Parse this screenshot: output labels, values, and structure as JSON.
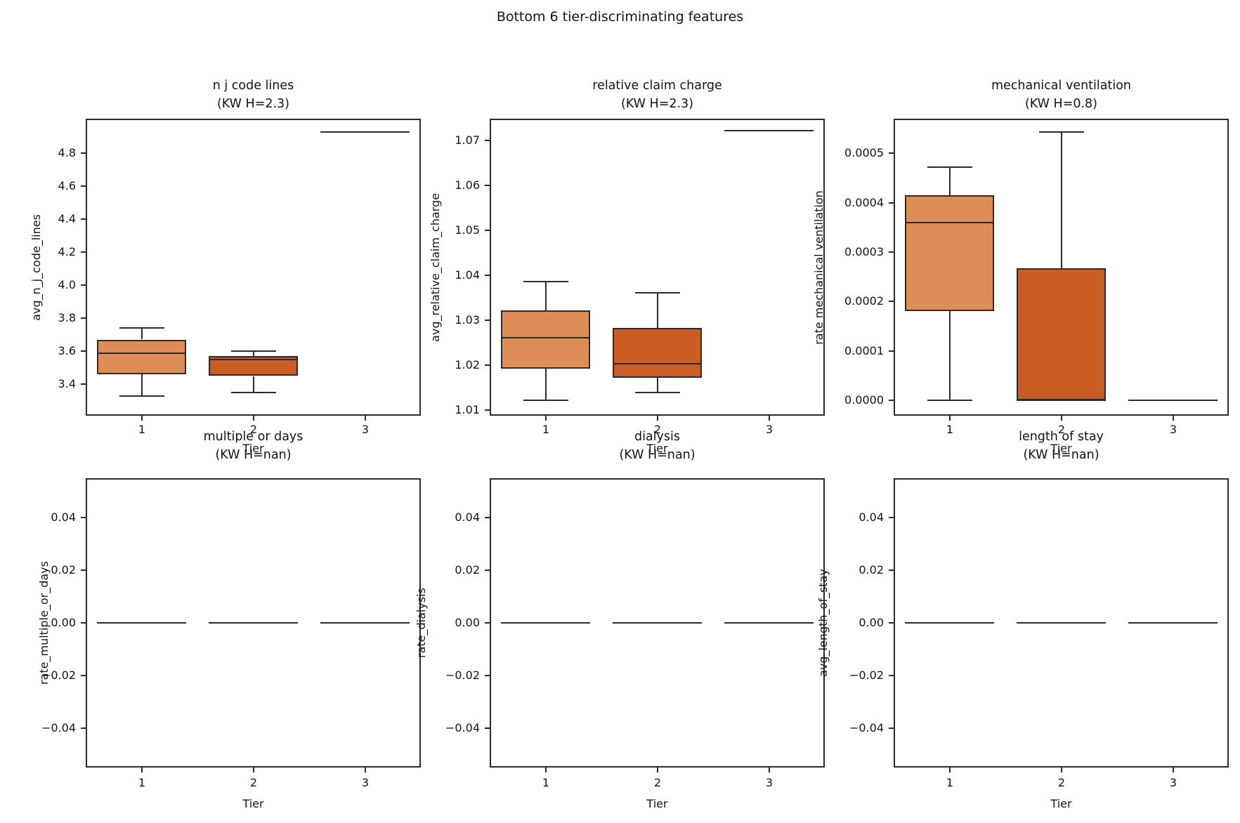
{
  "figure": {
    "suptitle": "Bottom 6 tier-discriminating features",
    "xlabel": "Tier",
    "xticklabels": [
      "1",
      "2",
      "3"
    ],
    "colors": {
      "tier_fills": [
        "#dd8d56",
        "#ca5c24",
        "#a9441c"
      ],
      "edge": "#2b2b2b",
      "text": "#141414",
      "background": "#ffffff"
    }
  },
  "chart_data": [
    {
      "type": "box",
      "title": "n j code lines",
      "subtitle": "(KW H=2.3)",
      "ylabel": "avg_n_j_code_lines",
      "xlabel": "Tier",
      "categories": [
        "1",
        "2",
        "3"
      ],
      "ylim": [
        3.21,
        5.01
      ],
      "grid": false,
      "legend": false,
      "ytick_values": [
        4.8,
        4.6,
        4.4,
        4.2,
        4.0,
        3.8,
        3.6,
        3.4
      ],
      "ytick_labels": [
        "4.8",
        "4.6",
        "4.4",
        "4.2",
        "4.0",
        "3.8",
        "3.6",
        "3.4"
      ],
      "boxes": [
        {
          "tier": "1",
          "whislo": 3.33,
          "q1": 3.46,
          "med": 3.59,
          "q3": 3.67,
          "whishi": 3.74
        },
        {
          "tier": "2",
          "whislo": 3.35,
          "q1": 3.45,
          "med": 3.55,
          "q3": 3.57,
          "whishi": 3.6
        },
        {
          "tier": "3",
          "whislo": 4.93,
          "q1": 4.93,
          "med": 4.93,
          "q3": 4.93,
          "whishi": 4.93
        }
      ]
    },
    {
      "type": "box",
      "title": "relative claim charge",
      "subtitle": "(KW H=2.3)",
      "ylabel": "avg_relative_claim_charge",
      "xlabel": "Tier",
      "categories": [
        "1",
        "2",
        "3"
      ],
      "ylim": [
        1.0088,
        1.0748
      ],
      "grid": false,
      "legend": false,
      "ytick_values": [
        1.07,
        1.06,
        1.05,
        1.04,
        1.03,
        1.02,
        1.01
      ],
      "ytick_labels": [
        "1.07",
        "1.06",
        "1.05",
        "1.04",
        "1.03",
        "1.02",
        "1.01"
      ],
      "boxes": [
        {
          "tier": "1",
          "whislo": 1.0123,
          "q1": 1.0192,
          "med": 1.0261,
          "q3": 1.0322,
          "whishi": 1.0386
        },
        {
          "tier": "2",
          "whislo": 1.0139,
          "q1": 1.0172,
          "med": 1.0203,
          "q3": 1.0283,
          "whishi": 1.0361
        },
        {
          "tier": "3",
          "whislo": 1.0722,
          "q1": 1.0722,
          "med": 1.0722,
          "q3": 1.0722,
          "whishi": 1.0722
        }
      ]
    },
    {
      "type": "box",
      "title": "mechanical ventilation",
      "subtitle": "(KW H=0.8)",
      "ylabel": "rate mechanical ventilation",
      "xlabel": "Tier",
      "categories": [
        "1",
        "2",
        "3"
      ],
      "ylim": [
        -3.1e-05,
        0.00057
      ],
      "grid": false,
      "legend": false,
      "ytick_values": [
        0.0005,
        0.0004,
        0.0003,
        0.0002,
        0.0001,
        0.0
      ],
      "ytick_labels": [
        "0.0005",
        "0.0004",
        "0.0003",
        "0.0002",
        "0.0001",
        "0.0000"
      ],
      "boxes": [
        {
          "tier": "1",
          "whislo": 0.0,
          "q1": 0.00018,
          "med": 0.00036,
          "q3": 0.000415,
          "whishi": 0.000472
        },
        {
          "tier": "2",
          "whislo": 0.0,
          "q1": 0.0,
          "med": 0.0,
          "q3": 0.000267,
          "whishi": 0.000543
        },
        {
          "tier": "3",
          "whislo": 0.0,
          "q1": 0.0,
          "med": 0.0,
          "q3": 0.0,
          "whishi": 0.0
        }
      ]
    },
    {
      "type": "box",
      "title": "multiple or days",
      "subtitle": "(KW H=nan)",
      "ylabel": "rate_multiple_or_days",
      "xlabel": "Tier",
      "categories": [
        "1",
        "2",
        "3"
      ],
      "ylim": [
        -0.055,
        0.055
      ],
      "grid": false,
      "legend": false,
      "ytick_values": [
        0.04,
        0.02,
        0.0,
        -0.02,
        -0.04
      ],
      "ytick_labels": [
        "0.04",
        "0.02",
        "0.00",
        "−0.02",
        "−0.04"
      ],
      "boxes": [
        {
          "tier": "1",
          "whislo": 0.0,
          "q1": 0.0,
          "med": 0.0,
          "q3": 0.0,
          "whishi": 0.0
        },
        {
          "tier": "2",
          "whislo": 0.0,
          "q1": 0.0,
          "med": 0.0,
          "q3": 0.0,
          "whishi": 0.0
        },
        {
          "tier": "3",
          "whislo": 0.0,
          "q1": 0.0,
          "med": 0.0,
          "q3": 0.0,
          "whishi": 0.0
        }
      ]
    },
    {
      "type": "box",
      "title": "dialysis",
      "subtitle": "(KW H=nan)",
      "ylabel": "rate_dialysis",
      "xlabel": "Tier",
      "categories": [
        "1",
        "2",
        "3"
      ],
      "ylim": [
        -0.055,
        0.055
      ],
      "grid": false,
      "legend": false,
      "ytick_values": [
        0.04,
        0.02,
        0.0,
        -0.02,
        -0.04
      ],
      "ytick_labels": [
        "0.04",
        "0.02",
        "0.00",
        "−0.02",
        "−0.04"
      ],
      "boxes": [
        {
          "tier": "1",
          "whislo": 0.0,
          "q1": 0.0,
          "med": 0.0,
          "q3": 0.0,
          "whishi": 0.0
        },
        {
          "tier": "2",
          "whislo": 0.0,
          "q1": 0.0,
          "med": 0.0,
          "q3": 0.0,
          "whishi": 0.0
        },
        {
          "tier": "3",
          "whislo": 0.0,
          "q1": 0.0,
          "med": 0.0,
          "q3": 0.0,
          "whishi": 0.0
        }
      ]
    },
    {
      "type": "box",
      "title": "length of stay",
      "subtitle": "(KW H=nan)",
      "ylabel": "avg_length_of_stay",
      "xlabel": "Tier",
      "categories": [
        "1",
        "2",
        "3"
      ],
      "ylim": [
        -0.055,
        0.055
      ],
      "grid": false,
      "legend": false,
      "ytick_values": [
        0.04,
        0.02,
        0.0,
        -0.02,
        -0.04
      ],
      "ytick_labels": [
        "0.04",
        "0.02",
        "0.00",
        "−0.02",
        "−0.04"
      ],
      "boxes": [
        {
          "tier": "1",
          "whislo": 0.0,
          "q1": 0.0,
          "med": 0.0,
          "q3": 0.0,
          "whishi": 0.0
        },
        {
          "tier": "2",
          "whislo": 0.0,
          "q1": 0.0,
          "med": 0.0,
          "q3": 0.0,
          "whishi": 0.0
        },
        {
          "tier": "3",
          "whislo": 0.0,
          "q1": 0.0,
          "med": 0.0,
          "q3": 0.0,
          "whishi": 0.0
        }
      ]
    }
  ]
}
